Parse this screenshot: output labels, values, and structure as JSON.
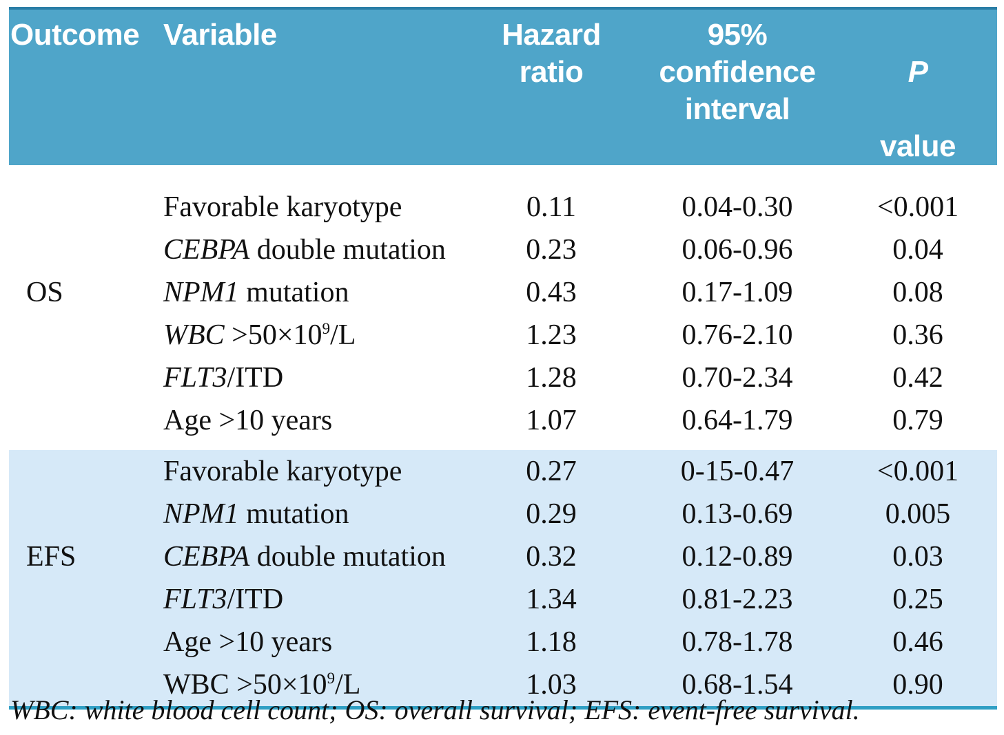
{
  "header": {
    "outcome": "Outcome",
    "variable": "Variable",
    "hazard_ratio": "Hazard\nratio",
    "confidence_interval": "95%\nconfidence\ninterval",
    "p_line1": "P",
    "p_line2": "value"
  },
  "sections": [
    {
      "outcome": "OS",
      "shaded": false,
      "rows": [
        {
          "variable_parts": [
            {
              "t": "Favorable karyotype"
            }
          ],
          "hazard_ratio": "0.11",
          "ci": "0.04-0.30",
          "p": "<0.001"
        },
        {
          "variable_parts": [
            {
              "t": "CEBPA",
              "i": true
            },
            {
              "t": " double mutation"
            }
          ],
          "hazard_ratio": "0.23",
          "ci": "0.06-0.96",
          "p": "0.04"
        },
        {
          "variable_parts": [
            {
              "t": "NPM1",
              "i": true
            },
            {
              "t": " mutation"
            }
          ],
          "hazard_ratio": "0.43",
          "ci": "0.17-1.09",
          "p": "0.08"
        },
        {
          "variable_parts": [
            {
              "t": "WBC",
              "i": true
            },
            {
              "t": " >50×10"
            },
            {
              "t": "9",
              "sup": true
            },
            {
              "t": "/L"
            }
          ],
          "hazard_ratio": "1.23",
          "ci": "0.76-2.10",
          "p": "0.36"
        },
        {
          "variable_parts": [
            {
              "t": "FLT3",
              "i": true
            },
            {
              "t": "/ITD"
            }
          ],
          "hazard_ratio": "1.28",
          "ci": "0.70-2.34",
          "p": "0.42"
        },
        {
          "variable_parts": [
            {
              "t": "Age >10 years"
            }
          ],
          "hazard_ratio": "1.07",
          "ci": "0.64-1.79",
          "p": "0.79"
        }
      ]
    },
    {
      "outcome": "EFS",
      "shaded": true,
      "rows": [
        {
          "variable_parts": [
            {
              "t": "Favorable karyotype"
            }
          ],
          "hazard_ratio": "0.27",
          "ci": "0-15-0.47",
          "p": "<0.001"
        },
        {
          "variable_parts": [
            {
              "t": "NPM1",
              "i": true
            },
            {
              "t": " mutation"
            }
          ],
          "hazard_ratio": "0.29",
          "ci": "0.13-0.69",
          "p": "0.005"
        },
        {
          "variable_parts": [
            {
              "t": "CEBPA",
              "i": true
            },
            {
              "t": " double mutation"
            }
          ],
          "hazard_ratio": "0.32",
          "ci": "0.12-0.89",
          "p": "0.03"
        },
        {
          "variable_parts": [
            {
              "t": "FLT3",
              "i": true
            },
            {
              "t": "/ITD"
            }
          ],
          "hazard_ratio": "1.34",
          "ci": "0.81-2.23",
          "p": "0.25"
        },
        {
          "variable_parts": [
            {
              "t": "Age >10 years"
            }
          ],
          "hazard_ratio": "1.18",
          "ci": "0.78-1.78",
          "p": "0.46"
        },
        {
          "variable_parts": [
            {
              "t": "WBC >50×10"
            },
            {
              "t": "9",
              "sup": true
            },
            {
              "t": "/L"
            }
          ],
          "hazard_ratio": "1.03",
          "ci": "0.68-1.54",
          "p": "0.90"
        }
      ]
    }
  ],
  "footnote": "WBC: white blood cell count; OS: overall survival; EFS: event-free survival.",
  "colors": {
    "header_bg": "#4fa5c9",
    "header_top_border": "#2a7ea6",
    "header_text": "#ffffff",
    "shaded_section_bg": "#d6e9f8",
    "bottom_rule": "#2f9fc4",
    "body_text": "#111111"
  }
}
